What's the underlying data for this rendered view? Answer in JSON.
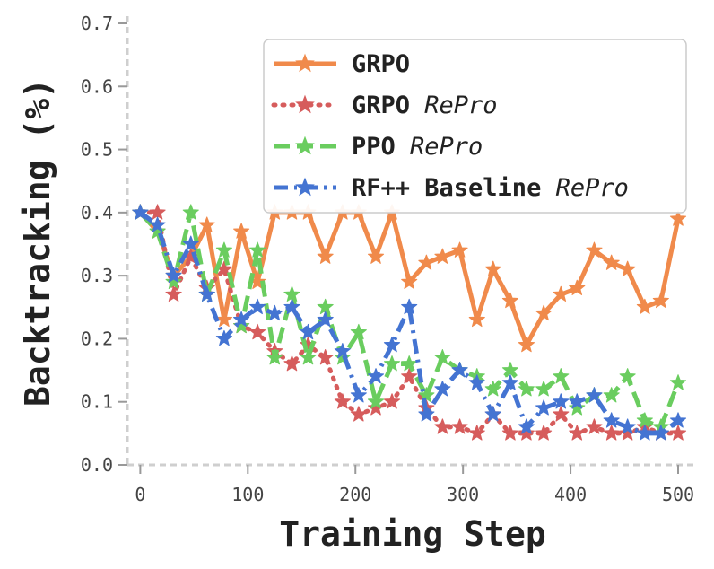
{
  "chart_data": {
    "type": "line",
    "xlabel": "Training Step",
    "ylabel": "Backtracking (%)",
    "xlim": [
      -12,
      510
    ],
    "ylim": [
      0,
      0.7
    ],
    "xticks": [
      "0",
      "100",
      "200",
      "300",
      "400",
      "500"
    ],
    "yticks": [
      "0.0",
      "0.1",
      "0.2",
      "0.3",
      "0.4",
      "0.5",
      "0.6",
      "0.7"
    ],
    "xtick_values": [
      0,
      100,
      200,
      300,
      400,
      500
    ],
    "ytick_values": [
      0,
      0.1,
      0.2,
      0.3,
      0.4,
      0.5,
      0.6,
      0.7
    ],
    "grid": false,
    "legend_position": "top-right",
    "x": [
      0,
      16,
      31,
      47,
      62,
      78,
      94,
      109,
      125,
      141,
      156,
      172,
      188,
      203,
      219,
      234,
      250,
      266,
      281,
      297,
      313,
      328,
      344,
      359,
      375,
      391,
      406,
      422,
      438,
      453,
      469,
      484,
      500
    ],
    "series": [
      {
        "name": "GRPO",
        "name_italic": "",
        "color": "#F08A4B",
        "dash": "solid",
        "values": [
          0.4,
          0.37,
          0.3,
          0.33,
          0.38,
          0.23,
          0.37,
          0.29,
          0.4,
          0.4,
          0.4,
          0.33,
          0.4,
          0.4,
          0.33,
          0.4,
          0.29,
          0.32,
          0.33,
          0.34,
          0.23,
          0.31,
          0.26,
          0.19,
          0.24,
          0.27,
          0.28,
          0.34,
          0.32,
          0.31,
          0.25,
          0.26,
          0.39
        ]
      },
      {
        "name": "GRPO",
        "name_italic": "RePro",
        "color": "#D65C5C",
        "dash": "dotted",
        "values": [
          0.4,
          0.4,
          0.27,
          0.33,
          0.28,
          0.31,
          0.22,
          0.21,
          0.18,
          0.16,
          0.19,
          0.17,
          0.1,
          0.08,
          0.09,
          0.1,
          0.14,
          0.09,
          0.06,
          0.06,
          0.05,
          0.08,
          0.05,
          0.05,
          0.05,
          0.08,
          0.05,
          0.06,
          0.05,
          0.05,
          0.06,
          0.05,
          0.05
        ]
      },
      {
        "name": "PPO",
        "name_italic": "RePro",
        "color": "#6ACD5F",
        "dash": "dashed",
        "values": [
          0.4,
          0.37,
          0.29,
          0.4,
          0.27,
          0.34,
          0.22,
          0.34,
          0.17,
          0.27,
          0.17,
          0.25,
          0.17,
          0.21,
          0.1,
          0.16,
          0.16,
          0.11,
          0.17,
          0.15,
          0.14,
          0.12,
          0.15,
          0.12,
          0.12,
          0.14,
          0.09,
          0.11,
          0.11,
          0.14,
          0.07,
          0.06,
          0.13
        ]
      },
      {
        "name": "RF++ Baseline",
        "name_italic": "RePro",
        "color": "#4474D2",
        "dash": "dashdot",
        "values": [
          0.4,
          0.38,
          0.3,
          0.35,
          0.27,
          0.2,
          0.23,
          0.25,
          0.24,
          0.25,
          0.21,
          0.23,
          0.18,
          0.11,
          0.14,
          0.19,
          0.25,
          0.08,
          0.12,
          0.15,
          0.13,
          0.08,
          0.13,
          0.06,
          0.09,
          0.1,
          0.1,
          0.11,
          0.07,
          0.06,
          0.05,
          0.05,
          0.07
        ]
      }
    ]
  }
}
